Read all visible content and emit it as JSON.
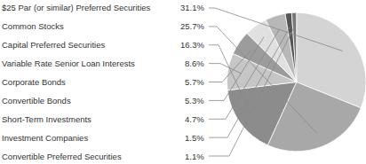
{
  "chart_data": {
    "type": "pie",
    "categories": [
      "$25 Par (or similar) Preferred Securities",
      "Common Stocks",
      "Capital Preferred Securities",
      "Variable Rate Senior Loan Interests",
      "Corporate Bonds",
      "Convertible Bonds",
      "Short-Term Investments",
      "Investment Companies",
      "Convertible Preferred Securities"
    ],
    "values": [
      31.1,
      25.7,
      16.3,
      8.6,
      5.7,
      5.3,
      4.7,
      1.5,
      1.1
    ],
    "value_labels": [
      "31.1%",
      "25.7%",
      "16.3%",
      "8.6%",
      "5.7%",
      "5.3%",
      "4.7%",
      "1.5%",
      "1.1%"
    ],
    "colors": [
      "#d4d4d4",
      "#a8a8a8",
      "#8c8c8c",
      "#c6c6c6",
      "#9c9c9c",
      "#e0e0e0",
      "#b8b8b8",
      "#555555",
      "#777777"
    ]
  }
}
